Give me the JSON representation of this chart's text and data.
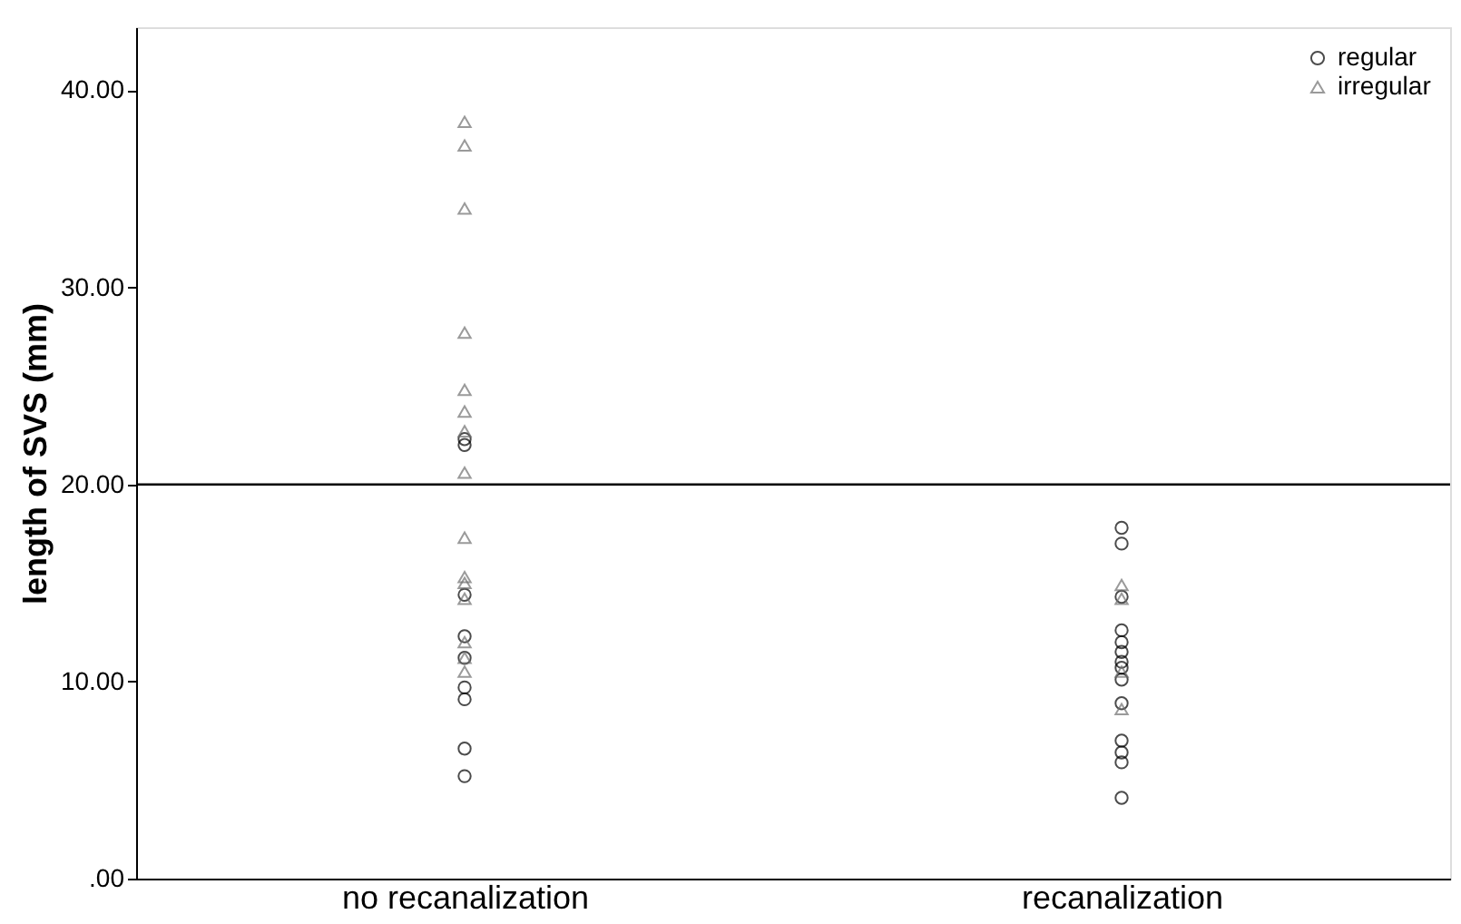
{
  "chart_data": {
    "type": "scatter",
    "ylabel": "length of SVS (mm)",
    "categories": [
      "no recanalization",
      "recanalization"
    ],
    "series": [
      {
        "name": "regular",
        "color": "#000000",
        "marker": "circle",
        "x": [
          "no recanalization",
          "no recanalization",
          "no recanalization",
          "no recanalization",
          "no recanalization",
          "no recanalization",
          "no recanalization",
          "no recanalization",
          "no recanalization",
          "recanalization",
          "recanalization",
          "recanalization",
          "recanalization",
          "recanalization",
          "recanalization",
          "recanalization",
          "recanalization",
          "recanalization",
          "recanalization",
          "recanalization",
          "recanalization",
          "recanalization",
          "recanalization"
        ],
        "values": [
          22.3,
          22.0,
          14.4,
          12.3,
          11.2,
          9.7,
          9.1,
          6.6,
          5.2,
          17.8,
          17.0,
          14.3,
          12.6,
          12.0,
          11.5,
          11.0,
          10.7,
          10.1,
          8.9,
          7.0,
          6.4,
          5.9,
          4.1
        ]
      },
      {
        "name": "irregular",
        "color": "#707070",
        "marker": "triangle",
        "x": [
          "no recanalization",
          "no recanalization",
          "no recanalization",
          "no recanalization",
          "no recanalization",
          "no recanalization",
          "no recanalization",
          "no recanalization",
          "no recanalization",
          "no recanalization",
          "no recanalization",
          "no recanalization",
          "no recanalization",
          "no recanalization",
          "no recanalization",
          "recanalization",
          "recanalization",
          "recanalization",
          "recanalization"
        ],
        "values": [
          38.4,
          37.2,
          34.0,
          27.7,
          24.8,
          23.7,
          22.7,
          20.6,
          17.3,
          15.3,
          15.0,
          14.2,
          12.0,
          11.2,
          10.5,
          14.9,
          14.2,
          10.5,
          8.6
        ]
      }
    ],
    "ylim": [
      0,
      43.2
    ],
    "yticks": [
      {
        "value": 0,
        "label": ".00"
      },
      {
        "value": 10,
        "label": "10.00"
      },
      {
        "value": 20,
        "label": "20.00"
      },
      {
        "value": 30,
        "label": "30.00"
      },
      {
        "value": 40,
        "label": "40.00"
      }
    ],
    "ref_lines": [
      {
        "axis": "y",
        "value": 20,
        "color": "#000000"
      }
    ],
    "legend": "top right",
    "grid": false
  }
}
